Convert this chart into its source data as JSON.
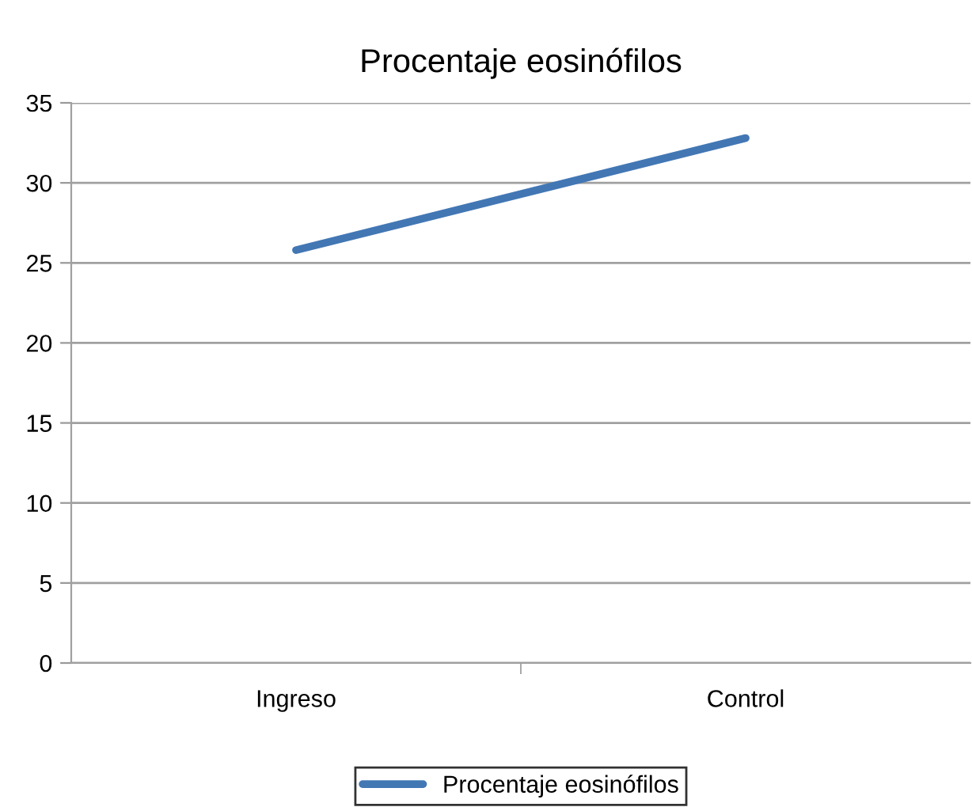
{
  "chart_data": {
    "type": "line",
    "title": "Procentaje eosinófilos",
    "categories": [
      "Ingreso",
      "Control"
    ],
    "series": [
      {
        "name": "Procentaje eosinófilos",
        "color": "#4277b4",
        "values": [
          25.8,
          32.8
        ]
      }
    ],
    "ylim": [
      0,
      35
    ],
    "yticks": [
      0,
      5,
      10,
      15,
      20,
      25,
      30,
      35
    ],
    "grid": "y",
    "legend": "bottom",
    "marker": "none",
    "line_style": "solid"
  }
}
